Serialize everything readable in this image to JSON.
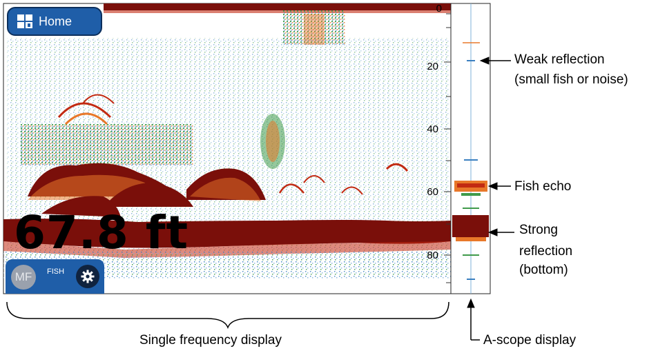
{
  "home_button": {
    "label": "Home",
    "icon": "grid-home-icon"
  },
  "depth_readout": {
    "value": "67.8 ft"
  },
  "control_panel": {
    "mode_badge": "MF",
    "mode_label": "FISH",
    "settings_icon": "gear-icon"
  },
  "depth_scale": {
    "labels": [
      "0",
      "20",
      "40",
      "60",
      "80"
    ]
  },
  "annotations": {
    "weak_line1": "Weak reflection",
    "weak_line2": "(small fish or noise)",
    "fish_echo": "Fish echo",
    "strong_line1": "Strong",
    "strong_line2": "reflection",
    "strong_line3": "(bottom)",
    "single_freq": "Single frequency display",
    "ascope": "A-scope display"
  },
  "colors": {
    "bottom": "#7a0f0a",
    "echo_red": "#c22a12",
    "echo_orange": "#e8782a",
    "echo_green": "#3f9a4a",
    "echo_blue": "#3a7fc0",
    "button_blue": "#1f5ea8"
  }
}
